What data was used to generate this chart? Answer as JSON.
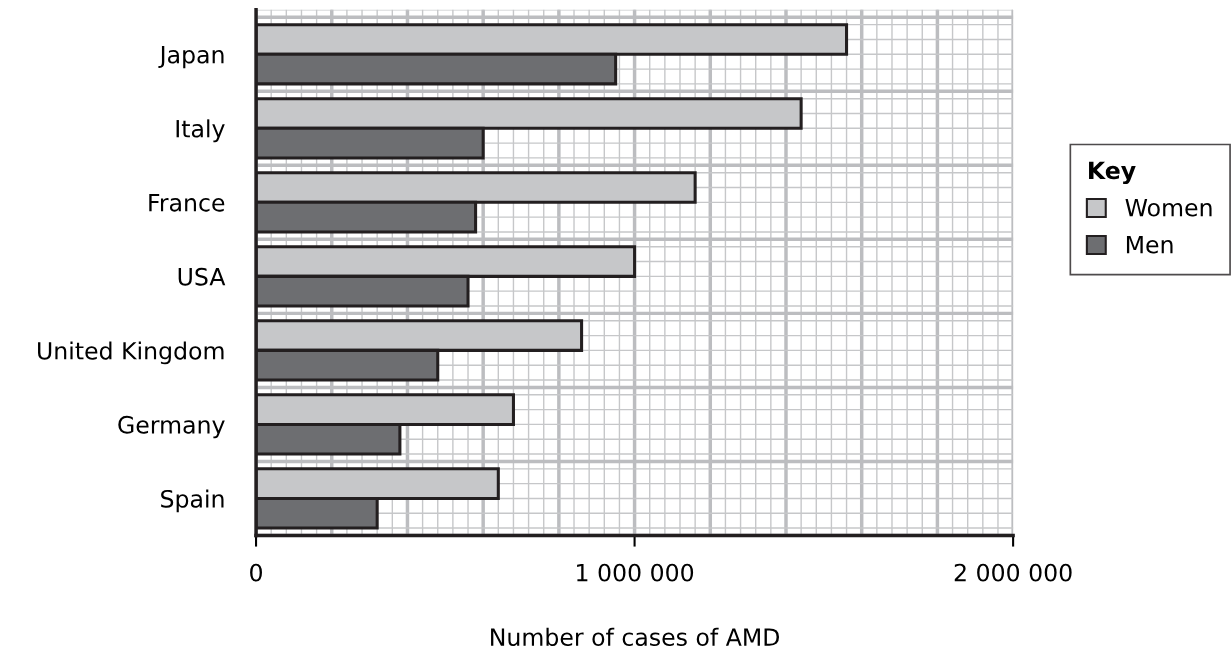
{
  "chart_data": {
    "type": "bar",
    "orientation": "horizontal",
    "xlabel": "Number of cases of AMD",
    "legend_title": "Key",
    "legend": "right",
    "categories": [
      "Japan",
      "Italy",
      "France",
      "USA",
      "United Kingdom",
      "Germany",
      "Spain"
    ],
    "series": [
      {
        "name": "Women",
        "color": "#c6c7c9",
        "values": [
          1560000,
          1440000,
          1160000,
          1000000,
          860000,
          680000,
          640000
        ]
      },
      {
        "name": "Men",
        "color": "#6d6e71",
        "values": [
          950000,
          600000,
          580000,
          560000,
          480000,
          380000,
          320000
        ]
      }
    ],
    "xlim": [
      0,
      2000000
    ],
    "xticks": [
      0,
      {
        "value": 1000000,
        "label": "1 000 000"
      },
      {
        "value": 2000000,
        "label": "2 000 000"
      }
    ],
    "grid": true
  }
}
